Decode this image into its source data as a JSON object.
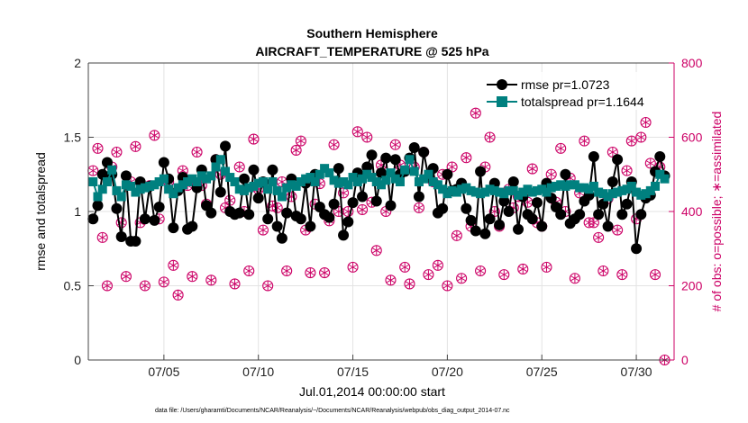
{
  "chart_data": {
    "type": "line",
    "title": "Southern Hemisphere",
    "subtitle": "AIRCRAFT_TEMPERATURE @ 525 hPa",
    "xlabel": "Jul.01,2014 00:00:00 start",
    "ylabel": "rmse and totalspread",
    "y2label": "# of obs: o=possible; ∗=assimilated",
    "footnote": "data file: /Users/gharamti/Documents/NCAR/Reanalysis/~/Documents/NCAR/Reanalysis/webpub/obs_diag_output_2014-07.nc",
    "xlim": [
      1.0,
      32.0
    ],
    "ylim": [
      0,
      2
    ],
    "y2lim": [
      0,
      800
    ],
    "xticks": [
      5,
      10,
      15,
      20,
      25,
      30
    ],
    "xtick_labels": [
      "07/05",
      "07/10",
      "07/15",
      "07/20",
      "07/25",
      "07/30"
    ],
    "yticks": [
      0,
      0.5,
      1,
      1.5,
      2
    ],
    "ytick_labels": [
      "0",
      "0.5",
      "1",
      "1.5",
      "2"
    ],
    "y2ticks": [
      0,
      200,
      400,
      600,
      800
    ],
    "y2tick_labels": [
      "0",
      "200",
      "400",
      "600",
      "800"
    ],
    "legend_position": "top-right",
    "grid": true,
    "colors": {
      "rmse": "#000000",
      "totalspread": "#00807f",
      "obs": "#cc0066"
    },
    "series": [
      {
        "name": "rmse pr=1.0723",
        "x": [
          1.25,
          1.5,
          1.75,
          2.0,
          2.25,
          2.5,
          2.75,
          3.0,
          3.25,
          3.5,
          3.75,
          4.0,
          4.25,
          4.5,
          4.75,
          5.0,
          5.25,
          5.5,
          5.75,
          6.0,
          6.25,
          6.5,
          6.75,
          7.0,
          7.25,
          7.5,
          7.75,
          8.0,
          8.25,
          8.5,
          8.75,
          9.0,
          9.25,
          9.5,
          9.75,
          10.0,
          10.25,
          10.5,
          10.75,
          11.0,
          11.25,
          11.5,
          11.75,
          12.0,
          12.25,
          12.5,
          12.75,
          13.0,
          13.25,
          13.5,
          13.75,
          14.0,
          14.25,
          14.5,
          14.75,
          15.0,
          15.25,
          15.5,
          15.75,
          16.0,
          16.25,
          16.5,
          16.75,
          17.0,
          17.25,
          17.5,
          17.75,
          18.0,
          18.25,
          18.5,
          18.75,
          19.0,
          19.25,
          19.5,
          19.75,
          20.0,
          20.25,
          20.5,
          20.75,
          21.0,
          21.25,
          21.5,
          21.75,
          22.0,
          22.25,
          22.5,
          22.75,
          23.0,
          23.25,
          23.5,
          23.75,
          24.0,
          24.25,
          24.5,
          24.75,
          25.0,
          25.25,
          25.5,
          25.75,
          26.0,
          26.25,
          26.5,
          26.75,
          27.0,
          27.25,
          27.5,
          27.75,
          28.0,
          28.25,
          28.5,
          28.75,
          29.0,
          29.25,
          29.5,
          29.75,
          30.0,
          30.25,
          30.5,
          30.75,
          31.0,
          31.25,
          31.5
        ],
        "values": [
          0.95,
          1.04,
          1.25,
          1.33,
          1.25,
          1.02,
          0.83,
          1.24,
          0.8,
          0.8,
          1.2,
          0.95,
          1.17,
          0.94,
          1.03,
          1.33,
          1.22,
          0.89,
          1.14,
          1.23,
          0.88,
          0.9,
          1.16,
          1.28,
          1.04,
          0.99,
          1.35,
          1.13,
          1.44,
          1.0,
          0.98,
          0.99,
          1.22,
          0.98,
          1.28,
          1.09,
          1.2,
          0.95,
          1.28,
          0.9,
          0.82,
          0.99,
          1.22,
          0.97,
          0.95,
          1.19,
          0.9,
          1.25,
          1.03,
          0.98,
          0.96,
          1.05,
          1.29,
          0.84,
          0.93,
          1.06,
          1.26,
          1.1,
          1.3,
          1.38,
          1.07,
          1.26,
          1.36,
          1.04,
          1.35,
          1.25,
          1.27,
          1.36,
          1.43,
          1.1,
          1.4,
          1.23,
          1.29,
          0.99,
          1.02,
          1.25,
          1.14,
          1.15,
          1.19,
          1.02,
          0.94,
          0.87,
          1.27,
          0.85,
          0.95,
          1.19,
          0.91,
          1.07,
          1.0,
          1.2,
          0.88,
          1.1,
          0.98,
          0.95,
          1.06,
          0.9,
          1.19,
          1.09,
          1.03,
          0.98,
          1.25,
          0.92,
          0.95,
          0.98,
          1.07,
          1.11,
          1.37,
          0.98,
          1.05,
          0.9,
          1.2,
          1.35,
          0.98,
          1.05,
          1.2,
          0.75,
          0.98,
          1.09,
          1.11,
          1.27,
          1.37,
          1.24
        ]
      },
      {
        "name": "totalspread pr=1.1644",
        "x": [
          1.25,
          1.5,
          1.75,
          2.0,
          2.25,
          2.5,
          2.75,
          3.0,
          3.25,
          3.5,
          3.75,
          4.0,
          4.25,
          4.5,
          4.75,
          5.0,
          5.25,
          5.5,
          5.75,
          6.0,
          6.25,
          6.5,
          6.75,
          7.0,
          7.25,
          7.5,
          7.75,
          8.0,
          8.25,
          8.5,
          8.75,
          9.0,
          9.25,
          9.5,
          9.75,
          10.0,
          10.25,
          10.5,
          10.75,
          11.0,
          11.25,
          11.5,
          11.75,
          12.0,
          12.25,
          12.5,
          12.75,
          13.0,
          13.25,
          13.5,
          13.75,
          14.0,
          14.25,
          14.5,
          14.75,
          15.0,
          15.25,
          15.5,
          15.75,
          16.0,
          16.25,
          16.5,
          16.75,
          17.0,
          17.25,
          17.5,
          17.75,
          18.0,
          18.25,
          18.5,
          18.75,
          19.0,
          19.25,
          19.5,
          19.75,
          20.0,
          20.25,
          20.5,
          20.75,
          21.0,
          21.25,
          21.5,
          21.75,
          22.0,
          22.25,
          22.5,
          22.75,
          23.0,
          23.25,
          23.5,
          23.75,
          24.0,
          24.25,
          24.5,
          24.75,
          25.0,
          25.25,
          25.5,
          25.75,
          26.0,
          26.25,
          26.5,
          26.75,
          27.0,
          27.25,
          27.5,
          27.75,
          28.0,
          28.25,
          28.5,
          28.75,
          29.0,
          29.25,
          29.5,
          29.75,
          30.0,
          30.25,
          30.5,
          30.75,
          31.0,
          31.25,
          31.5
        ],
        "values": [
          1.2,
          1.1,
          1.15,
          1.2,
          1.28,
          1.14,
          1.1,
          1.18,
          1.17,
          1.13,
          1.15,
          1.16,
          1.17,
          1.18,
          1.2,
          1.22,
          1.15,
          1.12,
          1.16,
          1.18,
          1.2,
          1.22,
          1.2,
          1.24,
          1.22,
          1.24,
          1.3,
          1.35,
          1.27,
          1.23,
          1.2,
          1.15,
          1.14,
          1.16,
          1.17,
          1.19,
          1.2,
          1.15,
          1.2,
          1.14,
          1.1,
          1.16,
          1.18,
          1.17,
          1.2,
          1.22,
          1.23,
          1.2,
          1.25,
          1.29,
          1.26,
          1.21,
          1.19,
          1.2,
          1.18,
          1.23,
          1.2,
          1.22,
          1.25,
          1.23,
          1.2,
          1.18,
          1.21,
          1.26,
          1.22,
          1.2,
          1.28,
          1.35,
          1.27,
          1.2,
          1.22,
          1.25,
          1.2,
          1.18,
          1.15,
          1.12,
          1.14,
          1.13,
          1.15,
          1.16,
          1.14,
          1.13,
          1.12,
          1.13,
          1.15,
          1.14,
          1.13,
          1.12,
          1.14,
          1.14,
          1.11,
          1.13,
          1.15,
          1.13,
          1.14,
          1.15,
          1.13,
          1.16,
          1.17,
          1.18,
          1.17,
          1.18,
          1.18,
          1.16,
          1.16,
          1.15,
          1.17,
          1.13,
          1.12,
          1.1,
          1.12,
          1.13,
          1.14,
          1.15,
          1.17,
          1.13,
          1.11,
          1.12,
          1.14,
          1.17,
          1.25,
          1.22
        ]
      },
      {
        "name": "# of obs possible",
        "x": [
          1.25,
          1.5,
          1.75,
          2.0,
          2.25,
          2.5,
          2.75,
          3.0,
          3.25,
          3.5,
          3.75,
          4.0,
          4.25,
          4.5,
          4.75,
          5.0,
          5.25,
          5.5,
          5.75,
          6.0,
          6.25,
          6.5,
          6.75,
          7.0,
          7.25,
          7.5,
          7.75,
          8.0,
          8.25,
          8.5,
          8.75,
          9.0,
          9.25,
          9.5,
          9.75,
          10.0,
          10.25,
          10.5,
          10.75,
          11.0,
          11.25,
          11.5,
          11.75,
          12.0,
          12.25,
          12.5,
          12.75,
          13.0,
          13.25,
          13.5,
          13.75,
          14.0,
          14.25,
          14.5,
          14.75,
          15.0,
          15.25,
          15.5,
          15.75,
          16.0,
          16.25,
          16.5,
          16.75,
          17.0,
          17.25,
          17.5,
          17.75,
          18.0,
          18.25,
          18.5,
          18.75,
          19.0,
          19.25,
          19.5,
          19.75,
          20.0,
          20.25,
          20.5,
          20.75,
          21.0,
          21.25,
          21.5,
          21.75,
          22.0,
          22.25,
          22.5,
          22.75,
          23.0,
          23.25,
          23.5,
          23.75,
          24.0,
          24.25,
          24.5,
          24.75,
          25.0,
          25.25,
          25.5,
          25.75,
          26.0,
          26.25,
          26.5,
          26.75,
          27.0,
          27.25,
          27.5,
          27.75,
          28.0,
          28.25,
          28.5,
          28.75,
          29.0,
          29.25,
          29.5,
          29.75,
          30.0,
          30.25,
          30.5,
          30.75,
          31.0,
          31.25,
          31.5
        ],
        "values": [
          510,
          570,
          330,
          200,
          520,
          560,
          370,
          225,
          480,
          575,
          370,
          200,
          470,
          605,
          380,
          210,
          480,
          255,
          175,
          510,
          470,
          225,
          560,
          470,
          420,
          215,
          540,
          500,
          410,
          430,
          205,
          520,
          400,
          240,
          595,
          460,
          350,
          200,
          415,
          410,
          480,
          240,
          440,
          565,
          590,
          350,
          235,
          420,
          475,
          235,
          375,
          580,
          400,
          450,
          400,
          250,
          615,
          405,
          600,
          425,
          295,
          525,
          400,
          215,
          580,
          525,
          250,
          205,
          520,
          410,
          560,
          230,
          480,
          255,
          500,
          200,
          520,
          335,
          220,
          545,
          360,
          665,
          240,
          520,
          600,
          400,
          360,
          230,
          460,
          410,
          440,
          245,
          425,
          515,
          370,
          360,
          250,
          500,
          425,
          570,
          400,
          490,
          220,
          450,
          590,
          370,
          370,
          330,
          240,
          435,
          560,
          350,
          230,
          510,
          590,
          380,
          600,
          640,
          530,
          230,
          520,
          0
        ]
      }
    ]
  }
}
